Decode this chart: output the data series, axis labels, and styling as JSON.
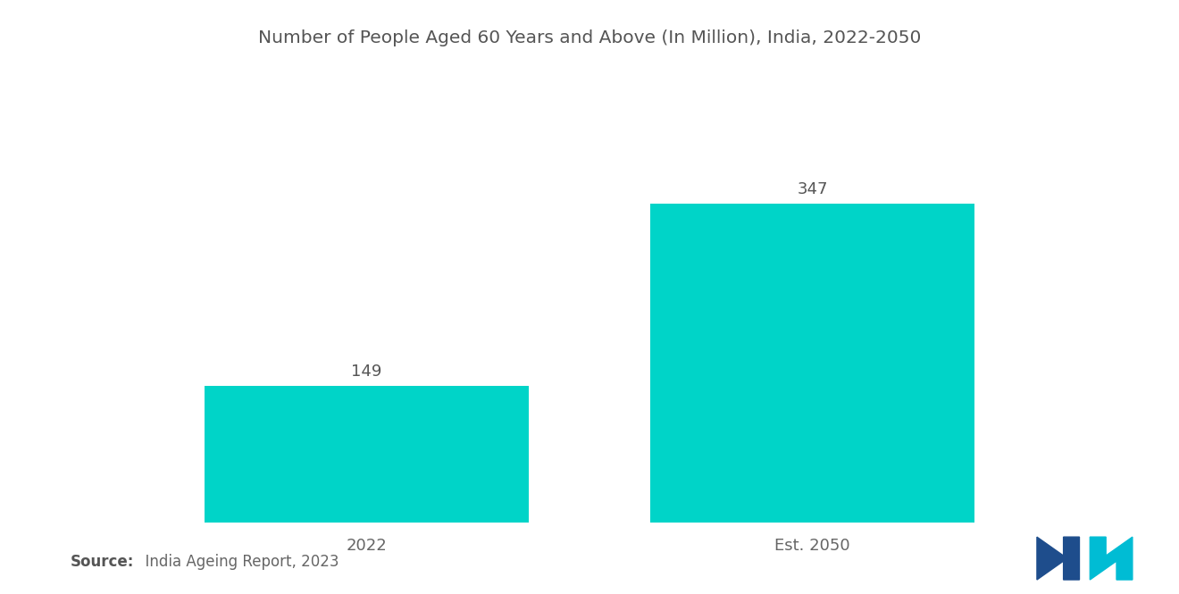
{
  "title": "Number of People Aged 60 Years and Above (In Million), India, 2022-2050",
  "categories": [
    "2022",
    "Est. 2050"
  ],
  "values": [
    149,
    347
  ],
  "bar_color": "#00D4C8",
  "background_color": "#FFFFFF",
  "title_fontsize": 14.5,
  "label_fontsize": 13,
  "value_fontsize": 13,
  "source_bold": "Source:",
  "source_rest": "  India Ageing Report, 2023",
  "source_fontsize": 12,
  "ylim": [
    0,
    420
  ],
  "bar_width": 0.32,
  "x_positions": [
    0.28,
    0.72
  ],
  "title_color": "#555555",
  "label_color": "#666666",
  "value_color": "#555555",
  "logo_left_color": "#1e4d8c",
  "logo_right_color": "#00BCD4"
}
